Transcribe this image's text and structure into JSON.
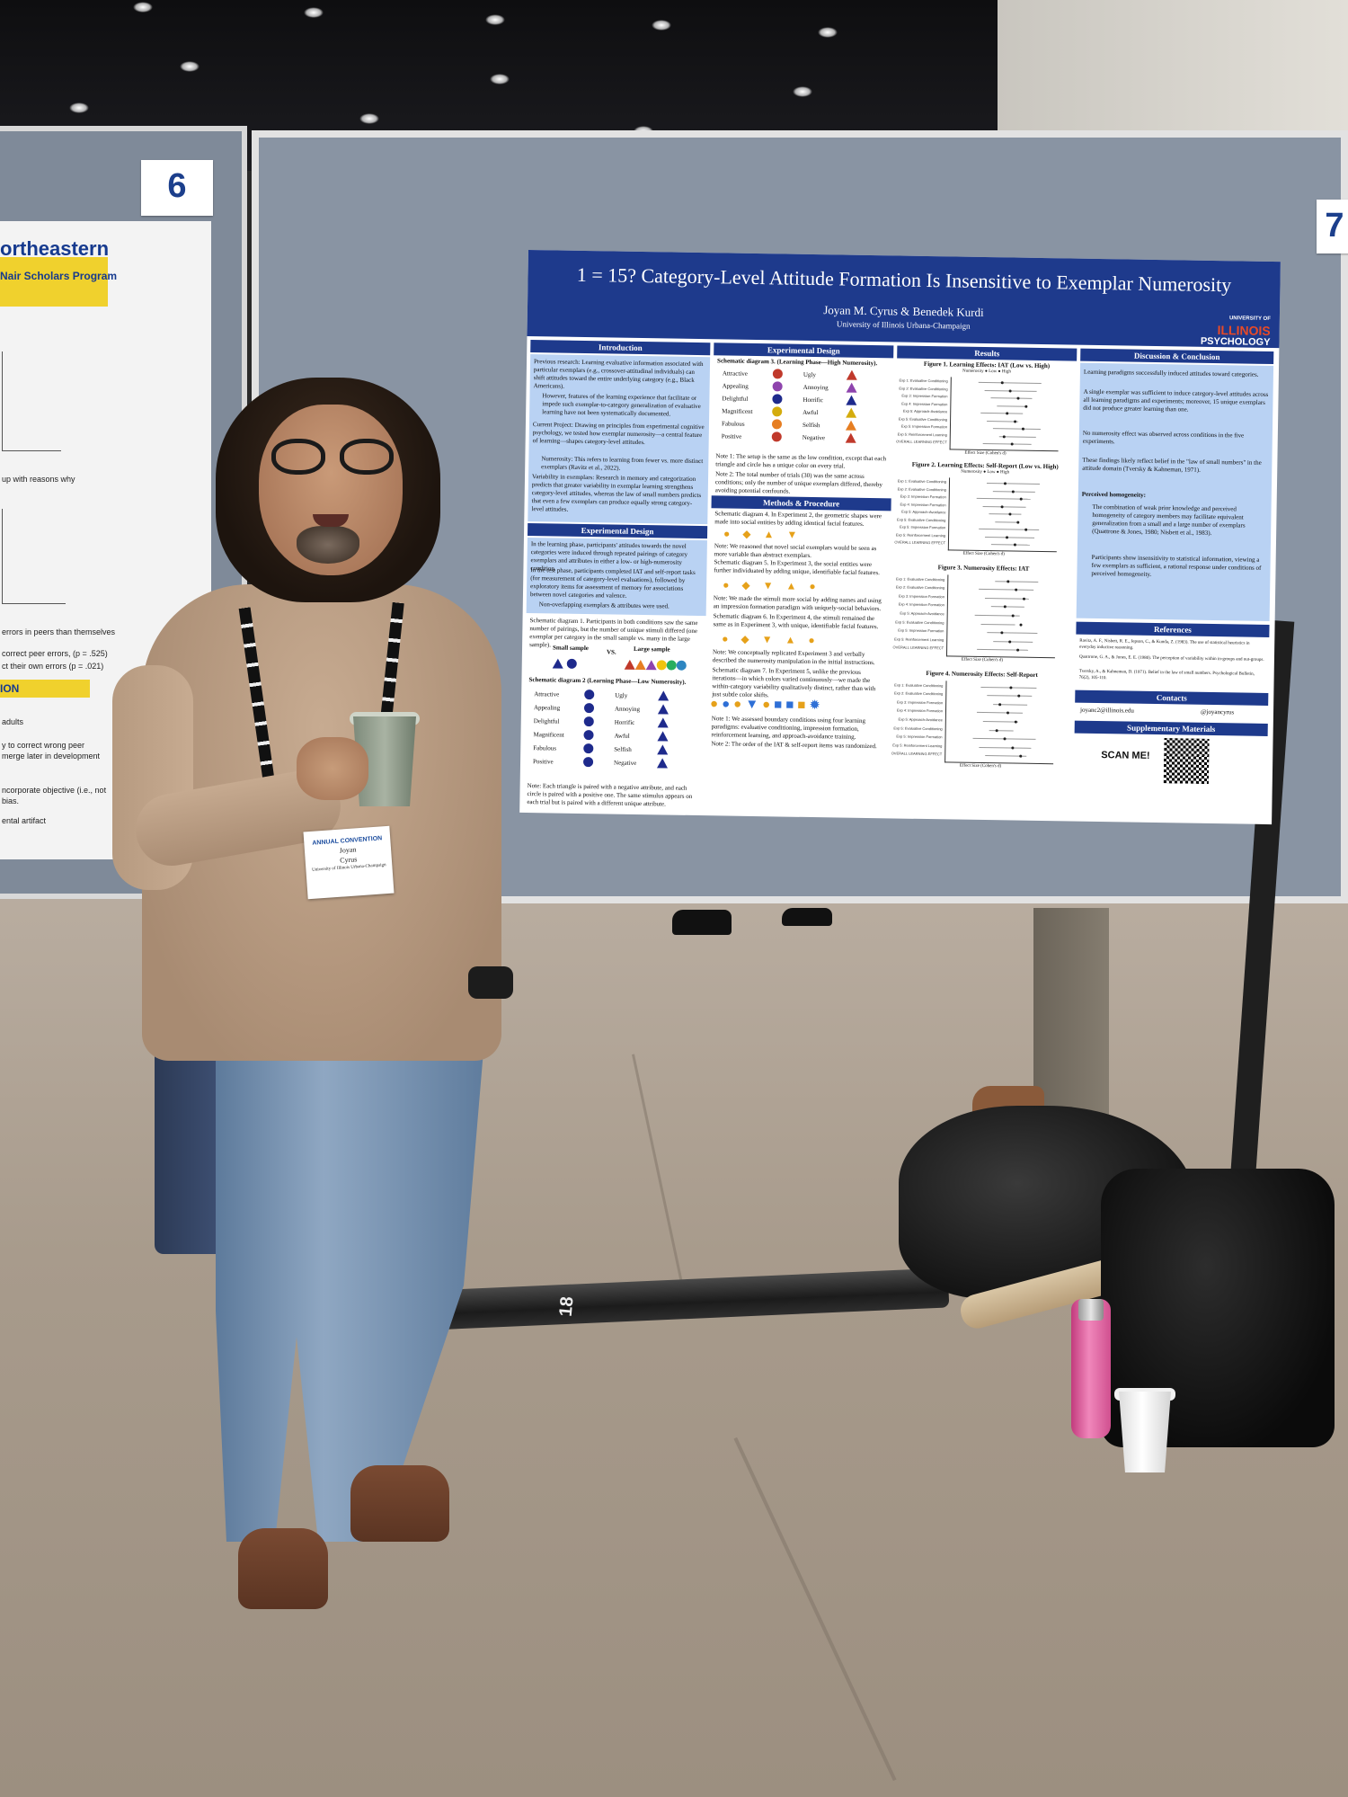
{
  "scene": {
    "stand_numbers": [
      "6",
      "7"
    ],
    "tube_label": "18"
  },
  "left_poster": {
    "title": "ortheastern",
    "subtitle": "Nair Scholars Program",
    "lines": [
      "up with reasons why",
      "errors in peers than themselves",
      "correct peer errors, (p = .525)",
      "ct their own errors (p = .021)",
      "adults",
      "y to correct wrong peer",
      "merge later in development",
      "ncorporate objective (i.e., not",
      "bias.",
      "ental artifact"
    ],
    "section": "ION"
  },
  "poster": {
    "title": "1 = 15? Category-Level Attitude Formation Is Insensitive to Exemplar Numerosity",
    "authors": "Joyan M. Cyrus & Benedek Kurdi",
    "affiliation": "University of Illinois Urbana-Champaign",
    "logo": {
      "top": "UNIVERSITY OF",
      "main": "ILLINOIS",
      "dept": "PSYCHOLOGY"
    },
    "sections": {
      "introduction": "Introduction",
      "experimental_design": "Experimental Design",
      "methods": "Methods & Procedure",
      "results": "Results",
      "discussion": "Discussion & Conclusion",
      "references": "References",
      "contacts": "Contacts",
      "supplementary": "Supplementary Materials"
    },
    "intro_points": [
      "Previous research: Learning evaluative information associated with particular exemplars (e.g., crossover-attitudinal individuals) can shift attitudes toward the entire underlying category (e.g., Black Americans).",
      "However, features of the learning experience that facilitate or impede such exemplar-to-category generalization of evaluative learning have not been systematically documented.",
      "Current Project: Drawing on principles from experimental cognitive psychology, we tested how exemplar numerosity—a central feature of learning—shapes category-level attitudes.",
      "Numerosity: This refers to learning from fewer vs. more distinct exemplars (Ravitz et al., 2022).",
      "Variability in exemplars: Research in memory and categorization predicts that greater variability in exemplar learning strengthens category-level attitudes, whereas the law of small numbers predicts that even a few exemplars can produce equally strong category-level attitudes."
    ],
    "exp_design_points": [
      "In the learning phase, participants' attitudes towards the novel categories were induced through repeated pairings of category exemplars and attributes in either a low- or high-numerosity condition.",
      "In the test phase, participants completed IAT and self-report tasks (for measurement of category-level evaluations), followed by exploratory items for assessment of memory for associations between novel categories and valence.",
      "Non-overlapping exemplars & attributes were used."
    ],
    "schematic1": "Schematic diagram 1. Participants in both conditions saw the same number of pairings, but the number of unique stimuli differed (one exemplar per category in the small sample vs. many in the large sample).",
    "small_sample": "Small sample",
    "large_sample": "Large sample",
    "vs": "VS.",
    "schematic2": "Schematic diagram 2 (Learning Phase—Low Numerosity).",
    "schematic3": "Schematic diagram 3. (Learning Phase—High Numerosity).",
    "pos_words": [
      "Attractive",
      "Appealing",
      "Delightful",
      "Magnificent",
      "Fabulous",
      "Positive"
    ],
    "neg_words": [
      "Ugly",
      "Annoying",
      "Horrific",
      "Awful",
      "Selfish",
      "Negative"
    ],
    "notes": [
      "Note 1: The setup is the same as the low condition, except that each triangle and circle has a unique color on every trial.",
      "Note 2: The total number of trials (30) was the same across conditions; only the number of unique exemplars differed, thereby avoiding potential confounds.",
      "Schematic diagram 4. In Experiment 2, the geometric shapes were made into social entities by adding identical facial features.",
      "Note: We reasoned that novel social exemplars would be seen as more variable than abstract exemplars.",
      "Schematic diagram 5. In Experiment 3, the social entities were further individuated by adding unique, identifiable facial features.",
      "Note: We made the stimuli more social by adding names and using an impression formation paradigm with uniquely-social behaviors.",
      "Schematic diagram 6. In Experiment 4, the stimuli remained the same as in Experiment 3, with unique, identifiable facial features.",
      "Note: We conceptually replicated Experiment 3 and verbally described the numerosity manipulation in the initial instructions.",
      "Schematic diagram 7. In Experiment 5, unlike the previous iterations—in which colors varied continuously—we made the within-category variability qualitatively distinct, rather than with just subtle color shifts.",
      "Note 1: We assessed boundary conditions using four learning paradigms: evaluative conditioning, impression formation, reinforcement learning, and approach-avoidance training.",
      "Note 2: The order of the IAT & self-report items was randomized."
    ],
    "note_low": "Note: Each triangle is paired with a negative attribute, and each circle is paired with a positive one. The same stimulus appears on each trial but is paired with a different unique attribute.",
    "figures": [
      "Figure 1. Learning Effects: IAT (Low vs. High)",
      "Figure 2. Learning Effects: Self-Report (Low vs. High)",
      "Figure 3. Numerosity Effects: IAT",
      "Figure 4. Numerosity Effects: Self-Report"
    ],
    "fig_axis": "Effect Size (Cohen's d)",
    "fig_legend": "Numerosity  ●  Low  ●  High",
    "fig_rows": [
      "Exp 1: Evaluative Conditioning",
      "Exp 2: Evaluative Conditioning",
      "Exp 3: Impression Formation",
      "Exp 4: Impression Formation",
      "Exp 5: Approach-Avoidance",
      "Exp 5: Evaluative Conditioning",
      "Exp 5: Impression Formation",
      "Exp 5: Reinforcement Learning",
      "OVERALL LEARNING EFFECT"
    ],
    "discussion_points": [
      "Learning paradigms successfully induced attitudes toward categories.",
      "A single exemplar was sufficient to induce category-level attitudes across all learning paradigms and experiments; moreover, 15 unique exemplars did not produce greater learning than one.",
      "No numerosity effect was observed across conditions in the five experiments.",
      "These findings likely reflect belief in the \"law of small numbers\" in the attitude domain (Tversky & Kahneman, 1971).",
      "Perceived homogeneity:",
      "The combination of weak prior knowledge and perceived homogeneity of category members may facilitate equivalent generalization from a small and a large number of exemplars (Quattrone & Jones, 1980; Nisbett et al., 1983).",
      "Participants show insensitivity to statistical information, viewing a few exemplars as sufficient, a rational response under conditions of perceived homogeneity."
    ],
    "references": [
      "Ravitz, A. F., Nisbett, R. E., Jepson, C., & Kunda, Z. (1983). The use of statistical heuristics in everyday inductive reasoning.",
      "Quattrone, G. A., & Jones, E. E. (1980). The perception of variability within in-groups and out-groups.",
      "Tversky, A., & Kahneman, D. (1971). Belief in the law of small numbers. Psychological Bulletin, 76(2), 105-110."
    ],
    "contact_email": "joyanc2@illinois.edu",
    "contact_handle": "@joyancyrus",
    "scan_label": "SCAN ME!"
  },
  "badge": {
    "event": "ANNUAL CONVENTION",
    "first": "Joyan",
    "last": "Cyrus",
    "org": "University of Illinois Urbana-Champaign"
  },
  "colors": {
    "poster_header": "#1e3a8c",
    "poster_panel": "#b9d2f3",
    "board": "#8994a3",
    "illinois_orange": "#e84a27",
    "bottle": "#e56aa8"
  }
}
